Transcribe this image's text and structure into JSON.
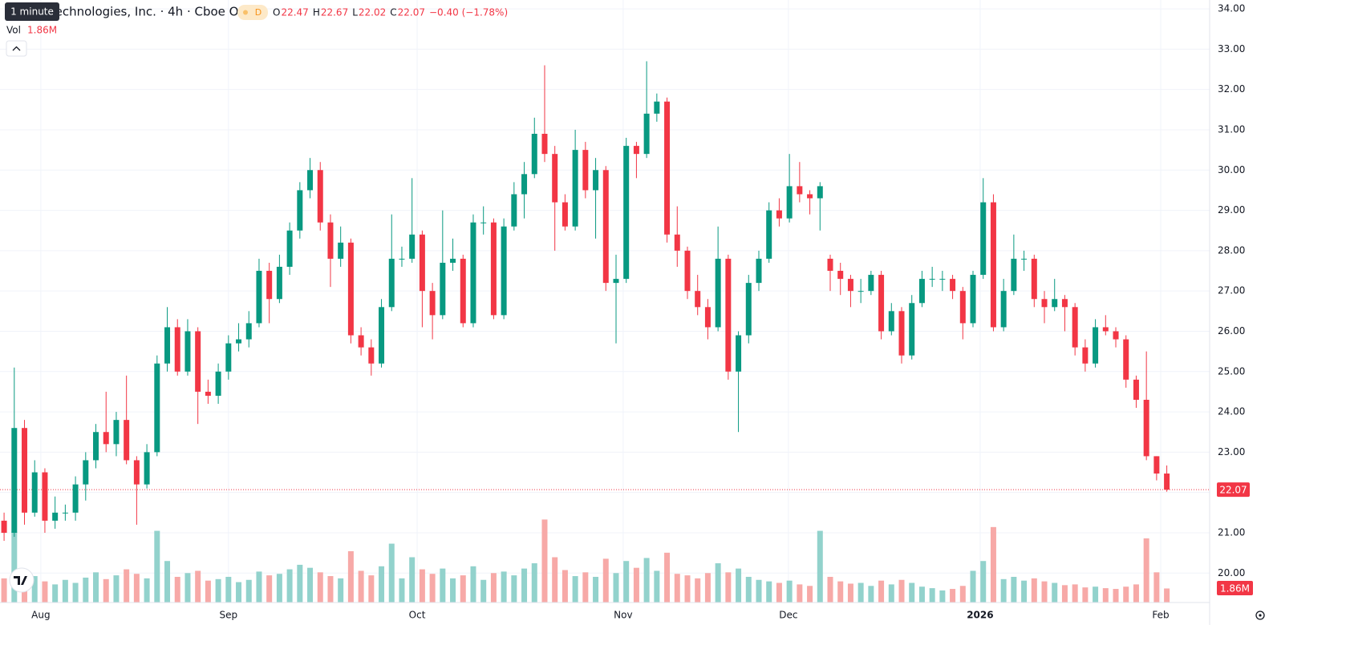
{
  "chart_data": {
    "type": "candlestick",
    "tooltip": "1 minute",
    "title": "Technologies, Inc. · 4h · Cboe One",
    "badge": "D",
    "legend": {
      "o_label": "O",
      "o": 22.47,
      "h_label": "H",
      "h": 22.67,
      "l_label": "L",
      "l": 22.02,
      "c_label": "C",
      "c": 22.07,
      "change": "−0.40 (−1.78%)"
    },
    "volume_title": "Vol",
    "volume_label": "1.86M",
    "up_color": "#089981",
    "down_color": "#f23645",
    "up_volume_color": "#92d2cc",
    "down_volume_color": "#f7a9a7",
    "grid": true,
    "ylim": [
      19.27,
      34.22
    ],
    "yticks": [
      {
        "value": 20,
        "label": "20.00"
      },
      {
        "value": 21,
        "label": "21.00"
      },
      {
        "value": 22,
        "label": "22.00"
      },
      {
        "value": 23,
        "label": "23.00"
      },
      {
        "value": 24,
        "label": "24.00"
      },
      {
        "value": 25,
        "label": "25.00"
      },
      {
        "value": 26,
        "label": "26.00"
      },
      {
        "value": 27,
        "label": "27.00"
      },
      {
        "value": 28,
        "label": "28.00"
      },
      {
        "value": 29,
        "label": "29.00"
      },
      {
        "value": 30,
        "label": "30.00"
      },
      {
        "value": 31,
        "label": "31.00"
      },
      {
        "value": 32,
        "label": "32.00"
      },
      {
        "value": 33,
        "label": "33.00"
      },
      {
        "value": 34,
        "label": "34.00"
      }
    ],
    "volume_lim": [
      0,
      12
    ],
    "xlim": [
      -0.4,
      118.2
    ],
    "xticks": [
      {
        "value": 3.6,
        "label": "Aug"
      },
      {
        "value": 22.0,
        "label": "Sep"
      },
      {
        "value": 40.5,
        "label": "Oct"
      },
      {
        "value": 60.7,
        "label": "Nov"
      },
      {
        "value": 76.9,
        "label": "Dec"
      },
      {
        "value": 95.7,
        "label": "2026"
      },
      {
        "value": 113.4,
        "label": "Feb"
      }
    ],
    "open": [
      21.3,
      21.0,
      23.6,
      21.5,
      22.5,
      21.3,
      21.5,
      21.5,
      22.2,
      22.8,
      23.5,
      23.2,
      23.8,
      22.8,
      22.2,
      23.0,
      25.2,
      26.1,
      25.0,
      26.0,
      24.5,
      24.4,
      25.0,
      25.7,
      25.8,
      26.2,
      27.5,
      26.8,
      27.6,
      28.5,
      29.5,
      30.0,
      28.7,
      27.8,
      28.2,
      25.9,
      25.6,
      25.2,
      26.6,
      27.8,
      27.8,
      28.4,
      27.0,
      26.4,
      27.7,
      27.8,
      26.2,
      28.7,
      28.7,
      26.4,
      28.6,
      29.4,
      29.9,
      30.9,
      30.4,
      29.2,
      28.6,
      30.5,
      29.5,
      30.0,
      27.2,
      27.3,
      30.6,
      30.4,
      31.4,
      31.7,
      28.4,
      28.0,
      27.0,
      26.6,
      26.1,
      27.8,
      25.0,
      25.9,
      27.2,
      27.8,
      29.0,
      28.8,
      29.6,
      29.4,
      29.3,
      27.8,
      27.5,
      27.3,
      27.0,
      27.0,
      27.4,
      26.0,
      26.5,
      25.4,
      26.7,
      27.3,
      27.3,
      27.3,
      27.0,
      26.2,
      27.4,
      29.2,
      26.1,
      27.0,
      27.8,
      27.8,
      26.8,
      26.6,
      26.8,
      26.6,
      25.6,
      25.2,
      26.1,
      26.0,
      25.8,
      24.8,
      24.3,
      22.9,
      22.47
    ],
    "high": [
      21.5,
      25.1,
      23.8,
      22.8,
      22.6,
      21.9,
      21.7,
      22.4,
      23.0,
      23.7,
      24.5,
      24.0,
      24.9,
      22.9,
      23.2,
      25.4,
      26.6,
      26.3,
      26.3,
      26.1,
      24.8,
      25.2,
      25.9,
      26.2,
      26.5,
      27.8,
      27.7,
      27.9,
      28.7,
      29.7,
      30.3,
      30.2,
      28.9,
      28.6,
      28.3,
      26.1,
      25.8,
      26.8,
      28.9,
      28.1,
      29.8,
      28.5,
      27.2,
      29.0,
      28.3,
      27.9,
      28.9,
      29.1,
      28.8,
      28.8,
      29.7,
      30.2,
      31.3,
      32.6,
      30.6,
      29.4,
      31.0,
      30.7,
      30.3,
      30.1,
      27.9,
      30.8,
      30.7,
      32.7,
      31.9,
      31.8,
      29.1,
      28.1,
      27.4,
      26.8,
      28.6,
      27.9,
      26.0,
      27.4,
      28.0,
      29.2,
      29.3,
      30.4,
      30.2,
      29.5,
      29.7,
      27.9,
      27.7,
      27.4,
      27.3,
      27.5,
      27.5,
      26.7,
      26.6,
      26.9,
      27.5,
      27.6,
      27.5,
      27.4,
      27.1,
      27.5,
      29.8,
      29.4,
      27.3,
      28.4,
      28.0,
      27.9,
      27.0,
      27.3,
      26.9,
      26.7,
      25.8,
      26.3,
      26.4,
      26.1,
      25.9,
      24.9,
      25.5,
      22.9,
      22.67
    ],
    "low": [
      20.8,
      20.9,
      21.2,
      21.4,
      21.0,
      21.1,
      21.3,
      21.3,
      21.8,
      22.6,
      23.0,
      22.9,
      22.7,
      21.2,
      22.1,
      22.9,
      25.0,
      24.9,
      24.9,
      23.7,
      24.2,
      24.2,
      24.8,
      25.5,
      25.6,
      26.1,
      26.2,
      26.7,
      27.4,
      28.3,
      29.3,
      28.5,
      27.1,
      27.6,
      25.7,
      25.4,
      24.9,
      25.1,
      26.5,
      27.6,
      27.7,
      26.1,
      25.8,
      26.3,
      27.5,
      26.1,
      26.1,
      28.4,
      26.3,
      26.3,
      28.5,
      28.8,
      29.8,
      30.2,
      28.0,
      28.5,
      28.5,
      29.3,
      28.3,
      27.0,
      25.7,
      27.2,
      29.8,
      30.3,
      31.2,
      28.2,
      27.6,
      26.8,
      26.4,
      25.8,
      26.0,
      24.8,
      23.5,
      25.7,
      27.0,
      27.7,
      28.6,
      28.7,
      29.2,
      28.9,
      28.5,
      27.0,
      26.9,
      26.6,
      26.7,
      26.9,
      25.8,
      25.9,
      25.2,
      25.3,
      26.6,
      27.1,
      27.0,
      26.8,
      25.8,
      26.1,
      27.3,
      26.0,
      26.0,
      26.9,
      27.5,
      26.6,
      26.2,
      26.5,
      26.0,
      25.4,
      25.0,
      25.1,
      25.9,
      25.6,
      24.6,
      24.1,
      22.8,
      22.3,
      22.02
    ],
    "close": [
      21.0,
      23.6,
      21.5,
      22.5,
      21.3,
      21.5,
      21.5,
      22.2,
      22.8,
      23.5,
      23.2,
      23.8,
      22.8,
      22.2,
      23.0,
      25.2,
      26.1,
      25.0,
      26.0,
      24.5,
      24.4,
      25.0,
      25.7,
      25.8,
      26.2,
      27.5,
      26.8,
      27.6,
      28.5,
      29.5,
      30.0,
      28.7,
      27.8,
      28.2,
      25.9,
      25.6,
      25.2,
      26.6,
      27.8,
      27.8,
      28.4,
      27.0,
      26.4,
      27.7,
      27.8,
      26.2,
      28.7,
      28.7,
      26.4,
      28.6,
      29.4,
      29.9,
      30.9,
      30.4,
      29.2,
      28.6,
      30.5,
      29.5,
      30.0,
      27.2,
      27.3,
      30.6,
      30.4,
      31.4,
      31.7,
      28.4,
      28.0,
      27.0,
      26.6,
      26.1,
      27.8,
      25.0,
      25.9,
      27.2,
      27.8,
      29.0,
      28.8,
      29.6,
      29.4,
      29.3,
      29.6,
      27.5,
      27.3,
      27.0,
      27.0,
      27.4,
      26.0,
      26.5,
      25.4,
      26.7,
      27.3,
      27.3,
      27.3,
      27.0,
      26.2,
      27.4,
      29.2,
      26.1,
      27.0,
      27.8,
      27.8,
      26.8,
      26.6,
      26.8,
      26.6,
      25.6,
      25.2,
      26.1,
      26.0,
      25.8,
      24.8,
      24.3,
      22.9,
      22.47,
      22.07
    ],
    "volume": [
      3.2,
      9.4,
      4.1,
      3.5,
      2.8,
      2.4,
      3.0,
      2.6,
      3.3,
      4.0,
      3.1,
      3.6,
      4.4,
      3.8,
      3.2,
      9.5,
      5.5,
      3.4,
      3.9,
      4.2,
      2.9,
      3.1,
      3.4,
      2.7,
      3.0,
      4.1,
      3.6,
      3.8,
      4.4,
      5.0,
      4.6,
      4.0,
      3.5,
      3.2,
      6.8,
      4.2,
      3.6,
      4.8,
      7.8,
      3.2,
      6.0,
      4.4,
      3.8,
      4.5,
      3.2,
      3.6,
      4.8,
      3.0,
      3.9,
      4.1,
      3.6,
      4.5,
      5.2,
      11.0,
      6.0,
      4.3,
      3.5,
      4.0,
      3.4,
      5.8,
      3.9,
      5.5,
      4.6,
      5.9,
      4.2,
      6.6,
      3.8,
      3.6,
      3.2,
      3.9,
      5.2,
      4.0,
      4.5,
      3.4,
      3.0,
      2.8,
      2.6,
      2.9,
      2.4,
      2.2,
      9.5,
      3.4,
      2.8,
      2.5,
      2.6,
      2.2,
      2.9,
      2.4,
      3.0,
      2.6,
      2.1,
      1.9,
      1.6,
      1.8,
      2.2,
      4.2,
      5.5,
      10.0,
      3.1,
      3.4,
      2.9,
      3.2,
      2.8,
      2.6,
      2.3,
      2.4,
      2.0,
      2.1,
      1.9,
      1.8,
      2.1,
      2.4,
      8.5,
      4.0,
      1.86
    ],
    "price_label": "22.07"
  }
}
